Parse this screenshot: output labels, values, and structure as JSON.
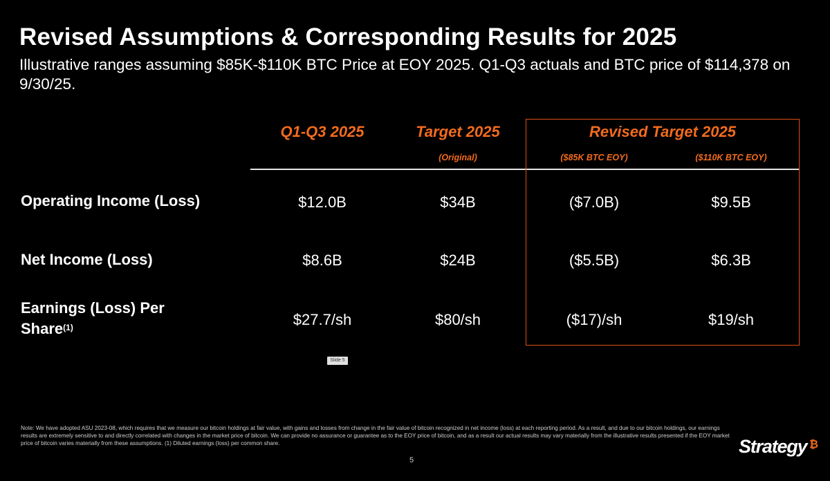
{
  "title": "Revised Assumptions & Corresponding Results for 2025",
  "subtitle": "Illustrative ranges assuming $85K-$110K BTC Price at EOY 2025. Q1-Q3 actuals and BTC price of $114,378 on 9/30/25.",
  "columns": {
    "q1q3": "Q1-Q3 2025",
    "target": "Target 2025",
    "target_sub": "(Original)",
    "revised": "Revised Target 2025",
    "revised_low_sub": "($85K BTC EOY)",
    "revised_high_sub": "($110K BTC EOY)"
  },
  "rows": [
    {
      "label": "Operating Income (Loss)",
      "q1q3": "$12.0B",
      "target": "$34B",
      "revised_low": "($7.0B)",
      "revised_high": "$9.5B"
    },
    {
      "label": "Net Income (Loss)",
      "q1q3": "$8.6B",
      "target": "$24B",
      "revised_low": "($5.5B)",
      "revised_high": "$6.3B"
    },
    {
      "label_line1": "Earnings (Loss) Per",
      "label_line2": "Share",
      "footnote_ref": "(1)",
      "q1q3": "$27.7/sh",
      "target": "$80/sh",
      "revised_low": "($17)/sh",
      "revised_high": "$19/sh"
    }
  ],
  "slide_tag": "Slide 5",
  "footnote": "Note: We have adopted ASU 2023-08, which requires that we measure our bitcoin holdings at fair value, with gains and losses from change in the fair value of bitcoin recognized in net income (loss) at each reporting period. As a result, and due to our bitcoin holdings, our earnings results are extremely sensitive to and directly correlated with changes in the market price of bitcoin. We can provide no assurance or guarantee as to the EOY price of bitcoin, and as a result our actual results may vary materially from the illustrative results presented if the EOY market price of bitcoin varies materially from these assumptions. (1) Diluted earnings (loss) per common share.",
  "page_number": "5",
  "logo": {
    "text": "Strategy",
    "mark": "₿"
  },
  "colors": {
    "accent": "#f26b1d",
    "background": "#000000",
    "text": "#ffffff"
  }
}
